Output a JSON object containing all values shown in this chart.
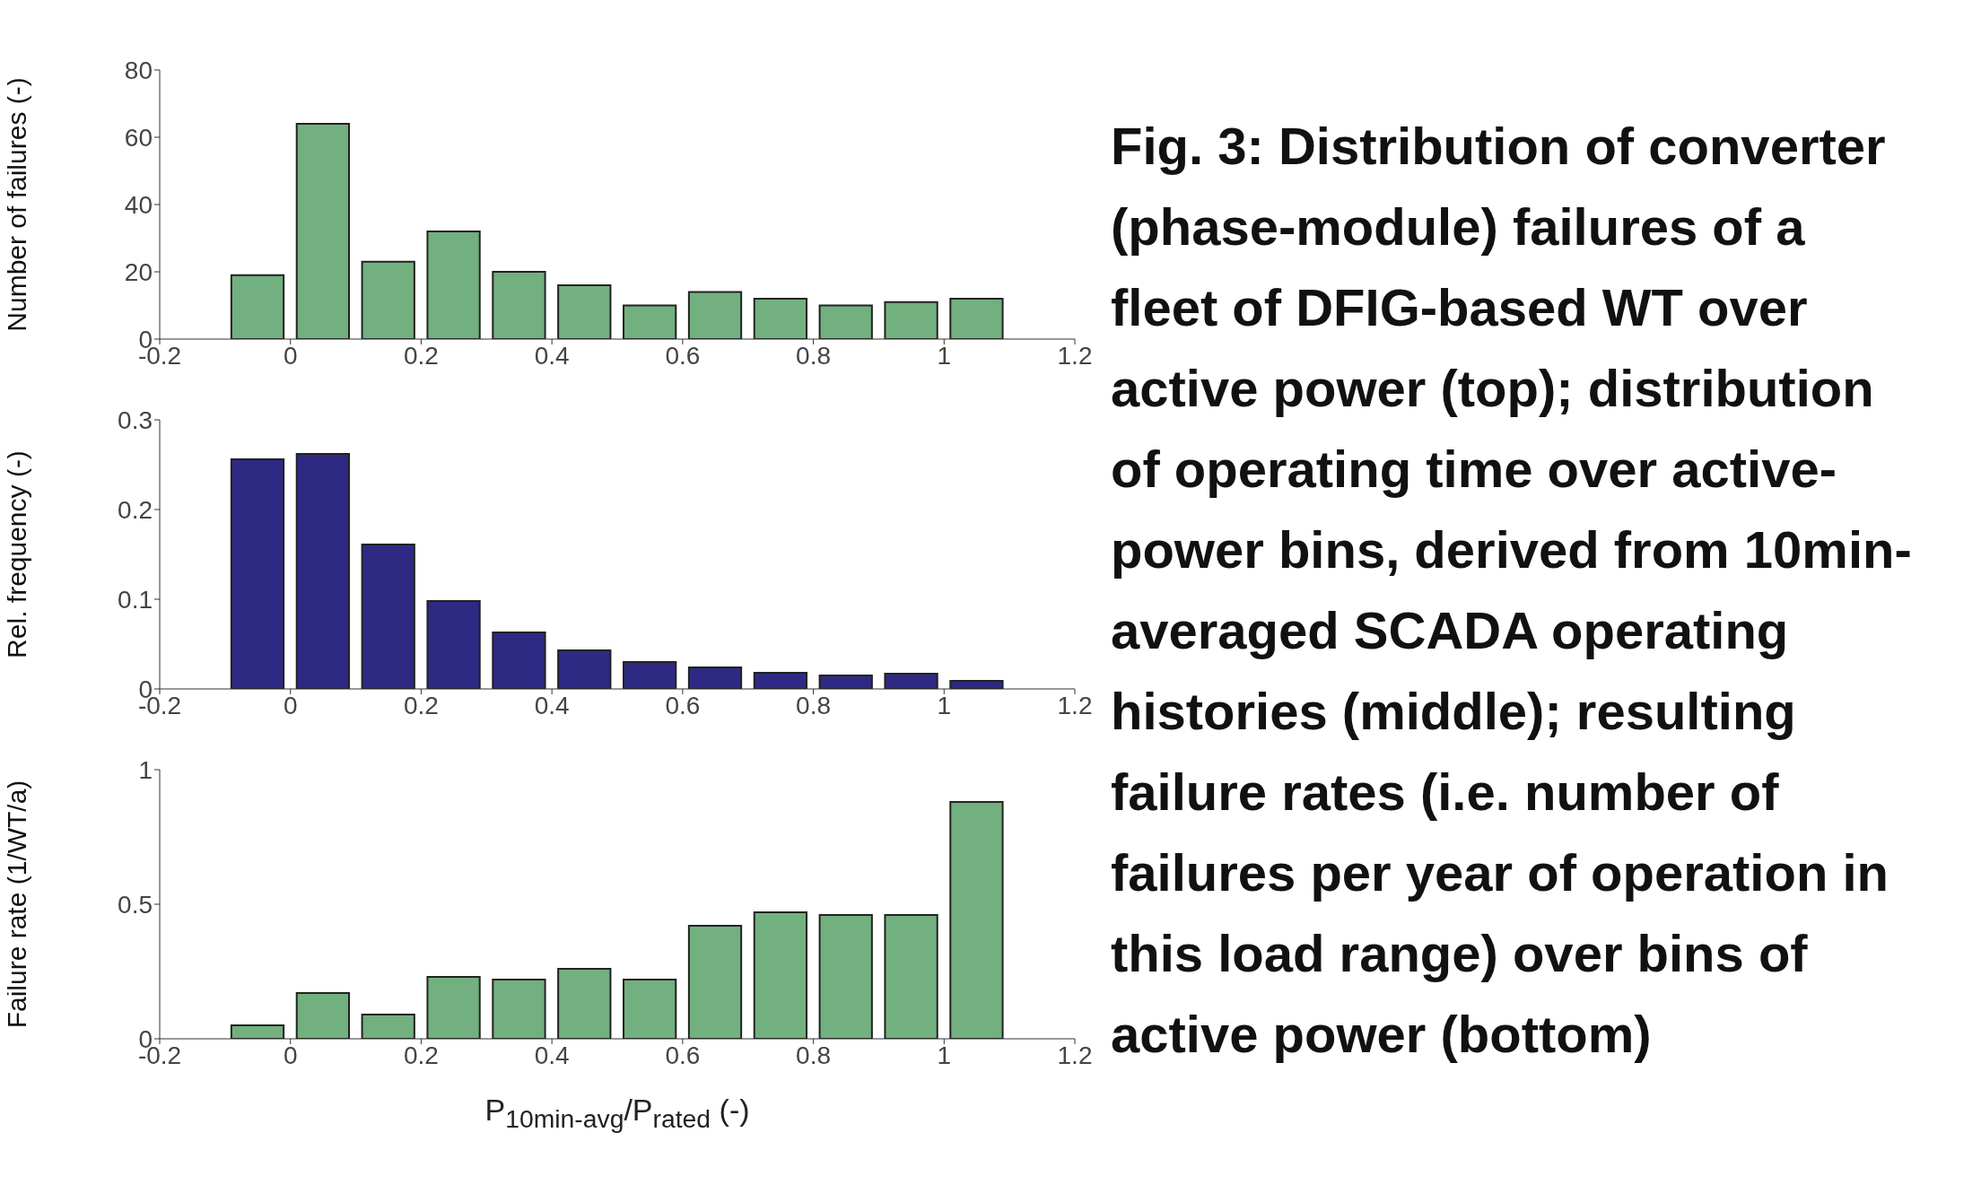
{
  "chart_data": [
    {
      "type": "histogram",
      "ylabel": "Number of failures (-)",
      "bins": [
        -0.1,
        0,
        0.1,
        0.2,
        0.3,
        0.4,
        0.5,
        0.6,
        0.7,
        0.8,
        0.9,
        1,
        1.1
      ],
      "values": [
        19,
        64,
        23,
        32,
        20,
        16,
        10,
        14,
        12,
        10,
        11,
        12
      ],
      "color": "#72b07f",
      "xlim": [
        -0.2,
        1.2
      ],
      "xticks": [
        -0.2,
        0,
        0.2,
        0.4,
        0.6,
        0.8,
        1,
        1.2
      ],
      "ylim": [
        0,
        80
      ],
      "yticks": [
        0,
        20,
        40,
        60,
        80
      ]
    },
    {
      "type": "histogram",
      "ylabel": "Rel. frequency (-)",
      "bins": [
        -0.1,
        0,
        0.1,
        0.2,
        0.3,
        0.4,
        0.5,
        0.6,
        0.7,
        0.8,
        0.9,
        1,
        1.1
      ],
      "values": [
        0.256,
        0.262,
        0.161,
        0.098,
        0.063,
        0.043,
        0.03,
        0.024,
        0.018,
        0.015,
        0.017,
        0.009
      ],
      "color": "#2e2a84",
      "xlim": [
        -0.2,
        1.2
      ],
      "xticks": [
        -0.2,
        0,
        0.2,
        0.4,
        0.6,
        0.8,
        1,
        1.2
      ],
      "ylim": [
        0,
        0.3
      ],
      "yticks": [
        0,
        0.1,
        0.2,
        0.3
      ]
    },
    {
      "type": "histogram",
      "ylabel": "Failure rate (1/WT/a)",
      "xlabel": "P$_{10min-avg}$/P$_{rated}$ (-)",
      "bins": [
        -0.1,
        0,
        0.1,
        0.2,
        0.3,
        0.4,
        0.5,
        0.6,
        0.7,
        0.8,
        0.9,
        1,
        1.1
      ],
      "values": [
        0.05,
        0.17,
        0.09,
        0.23,
        0.22,
        0.26,
        0.22,
        0.42,
        0.47,
        0.46,
        0.46,
        0.88
      ],
      "color": "#72b07f",
      "xlim": [
        -0.2,
        1.2
      ],
      "xticks": [
        -0.2,
        0,
        0.2,
        0.4,
        0.6,
        0.8,
        1,
        1.2
      ],
      "ylim": [
        0,
        1
      ],
      "yticks": [
        0,
        0.5,
        1
      ]
    },
    {
      "type": "other",
      "annotations": [
        "Fig. 3: Distribution of converter (phase-module) failures of a fleet of DFIG-based WT over active power (top); distribution of operating time over active-power bins, derived from 10min-averaged SCADA operating histories (middle); resulting failure rates (i.e. number of failures per year of operation in this load range) over bins of active power (bottom)"
      ]
    }
  ]
}
